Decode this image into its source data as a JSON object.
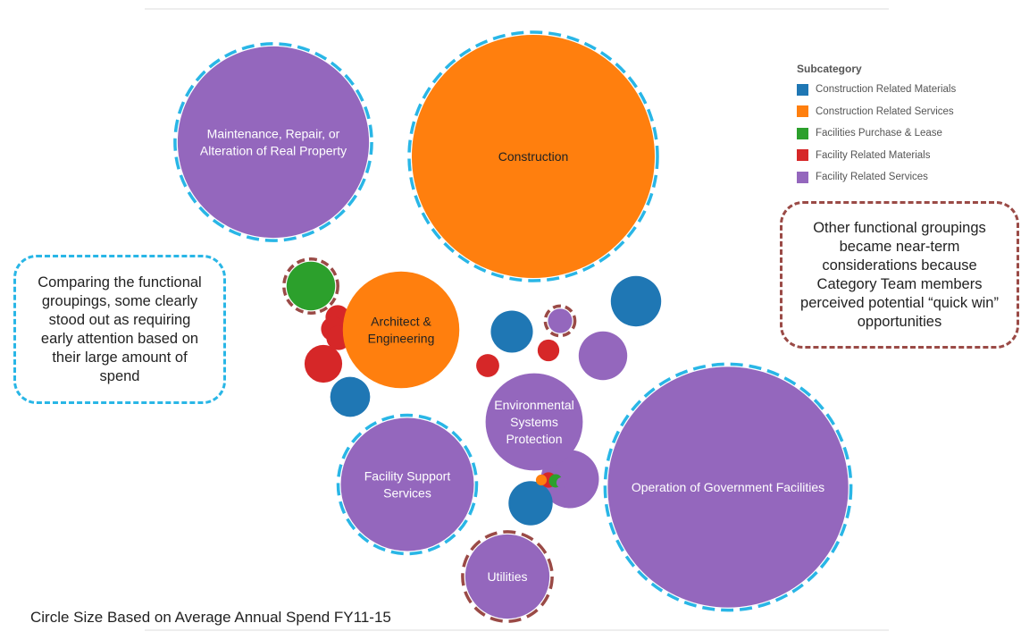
{
  "chart_data": {
    "type": "bubble",
    "legend": {
      "title": "Subcategory",
      "placement": "top-right",
      "items": [
        {
          "label": "Construction Related Materials",
          "color": "#1f77b4"
        },
        {
          "label": "Construction Related Services",
          "color": "#ff7f0e"
        },
        {
          "label": "Facilities Purchase & Lease",
          "color": "#2ca02c"
        },
        {
          "label": "Facility Related Materials",
          "color": "#d62728"
        },
        {
          "label": "Facility Related Services",
          "color": "#9467bd"
        }
      ]
    },
    "labeled_bubbles": [
      {
        "label": "Maintenance, Repair, or Alteration of Real Property",
        "lines": [
          "Maintenance, Repair, or",
          "Alteration of Real Property"
        ],
        "subcategory": "Facility Related Services",
        "relative_size": 0.62,
        "highlight": "early-attention",
        "text_color": "#ffffff"
      },
      {
        "label": "Construction",
        "lines": [
          "Construction"
        ],
        "subcategory": "Construction Related Services",
        "relative_size": 1.0,
        "highlight": "early-attention",
        "text_color": "#222222"
      },
      {
        "label": "Architect & Engineering",
        "lines": [
          "Architect &",
          "Engineering"
        ],
        "subcategory": "Construction Related Services",
        "relative_size": 0.23,
        "highlight": "none",
        "text_color": "#222222"
      },
      {
        "label": "Environmental Systems Protection",
        "lines": [
          "Environmental",
          "Systems",
          "Protection"
        ],
        "subcategory": "Facility Related Services",
        "relative_size": 0.16,
        "highlight": "none",
        "text_color": "#ffffff"
      },
      {
        "label": "Facility Support Services",
        "lines": [
          "Facility Support",
          "Services"
        ],
        "subcategory": "Facility Related Services",
        "relative_size": 0.3,
        "highlight": "early-attention",
        "text_color": "#ffffff"
      },
      {
        "label": "Utilities",
        "lines": [
          "Utilities"
        ],
        "subcategory": "Facility Related Services",
        "relative_size": 0.12,
        "highlight": "quick-win",
        "text_color": "#ffffff"
      },
      {
        "label": "Operation of Government Facilities",
        "lines": [
          "Operation of Government Facilities"
        ],
        "subcategory": "Facility Related Services",
        "relative_size": 0.98,
        "highlight": "early-attention",
        "text_color": "#ffffff"
      }
    ],
    "unlabeled_bubbles": [
      {
        "subcategory": "Facilities Purchase & Lease",
        "relative_size": 0.04,
        "highlight": "quick-win"
      },
      {
        "subcategory": "Facility Related Materials",
        "relative_size": 0.024
      },
      {
        "subcategory": "Construction Related Materials",
        "relative_size": 0.027
      },
      {
        "subcategory": "Construction Related Materials",
        "relative_size": 0.03
      },
      {
        "subcategory": "Facility Related Materials",
        "relative_size": 0.01
      },
      {
        "subcategory": "Facility Related Materials",
        "relative_size": 0.01
      },
      {
        "subcategory": "Facility Related Materials",
        "relative_size": 0.01
      },
      {
        "subcategory": "Construction Related Materials",
        "relative_size": 0.043
      },
      {
        "subcategory": "Facility Related Services",
        "relative_size": 0.01,
        "highlight": "quick-win"
      },
      {
        "subcategory": "Facility Related Materials",
        "relative_size": 0.009
      },
      {
        "subcategory": "Facility Related Materials",
        "relative_size": 0.008
      },
      {
        "subcategory": "Facility Related Services",
        "relative_size": 0.04
      },
      {
        "subcategory": "Facility Related Services",
        "relative_size": 0.057
      },
      {
        "subcategory": "Construction Related Materials",
        "relative_size": 0.033
      },
      {
        "subcategory": "Facility Related Materials",
        "relative_size": 0.004
      },
      {
        "subcategory": "Facilities Purchase & Lease",
        "relative_size": 0.003
      },
      {
        "subcategory": "Construction Related Services",
        "relative_size": 0.002
      },
      {
        "subcategory": "Facility Related Services",
        "relative_size": 0.002
      }
    ],
    "highlight_styles": {
      "early-attention": "#29b6e6",
      "quick-win": "#9a4a46"
    }
  },
  "callouts": {
    "left": "Comparing the functional groupings, some clearly stood out as requiring early attention based on their large amount of spend",
    "right": "Other functional groupings became near-term considerations because Category Team members perceived potential “quick win” opportunities"
  },
  "footnote": "Circle Size Based on Average Annual Spend FY11-15"
}
